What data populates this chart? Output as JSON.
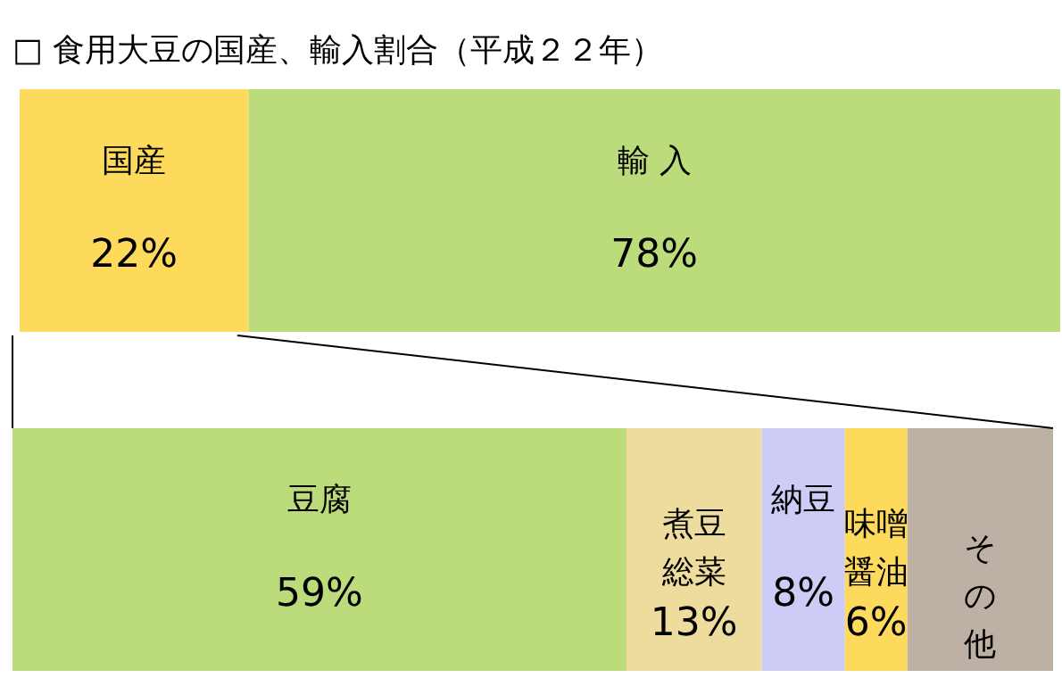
{
  "chart_data": [
    {
      "type": "bar",
      "title": "□ 食用大豆の国産、輸入割合（平成２２年）",
      "orientation": "horizontal",
      "stacked": true,
      "categories": [
        null
      ],
      "series": [
        {
          "name": "国産",
          "color": "#fdd95c",
          "values": [
            22
          ],
          "value_labels": [
            "22%"
          ]
        },
        {
          "name": "輸 入",
          "color": "#bcdc7c",
          "values": [
            78
          ],
          "value_labels": [
            "78%"
          ]
        }
      ]
    },
    {
      "type": "bar",
      "orientation": "horizontal",
      "stacked": true,
      "categories": [
        null
      ],
      "series": [
        {
          "name": "豆腐",
          "color": "#bcdc7c",
          "values": [
            59
          ],
          "value_labels": [
            "59%"
          ]
        },
        {
          "name": "煮豆総菜",
          "color": "#eedc9e",
          "values": [
            13
          ],
          "value_labels": [
            "13%"
          ]
        },
        {
          "name": "納豆",
          "color": "#ccccf6",
          "values": [
            8
          ],
          "value_labels": [
            "8%"
          ]
        },
        {
          "name": "味噌醤油",
          "color": "#fdd95c",
          "values": [
            6
          ],
          "value_labels": [
            "6%"
          ]
        },
        {
          "name": "その他",
          "color": "#bdb1a5",
          "values": [
            14
          ],
          "value_labels": [
            null
          ]
        }
      ]
    }
  ]
}
